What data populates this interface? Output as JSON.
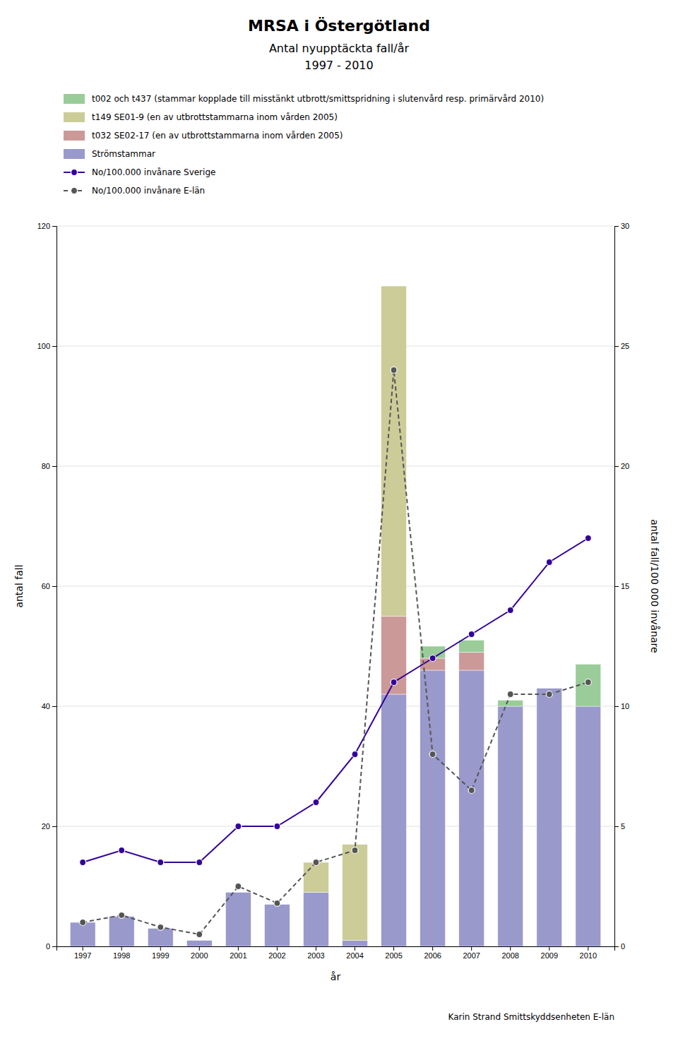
{
  "chart_data": {
    "type": "bar",
    "title": "MRSA i Östergötland",
    "subtitle": "Antal nyupptäckta fall/år",
    "annotations": [
      "1997 - 2010",
      "Karin Strand Smittskyddsenheten E-län"
    ],
    "categories": [
      1997,
      1998,
      1999,
      2000,
      2001,
      2002,
      2003,
      2004,
      2005,
      2006,
      2007,
      2008,
      2009,
      2010
    ],
    "stacked": true,
    "grid": true,
    "legend": "top",
    "xlabel": "år",
    "ylabel": "antal fall",
    "y2label": "antal fall/100 000 invånare",
    "ylim": [
      0,
      120
    ],
    "yticks": [
      0,
      20,
      40,
      60,
      80,
      100,
      120
    ],
    "y2lim": [
      0,
      30
    ],
    "y2ticks": [
      0,
      5,
      10,
      15,
      20,
      25,
      30
    ],
    "series": [
      {
        "name": "Strömstammar",
        "type": "bar",
        "color": "#9999cc",
        "values": [
          4,
          5,
          3,
          1,
          9,
          7,
          9,
          1,
          42,
          46,
          46,
          40,
          43,
          40
        ]
      },
      {
        "name": "t032 SE02-17 (en av utbrottstammarna inom vården 2005)",
        "type": "bar",
        "color": "#cc9999",
        "values": [
          0,
          0,
          0,
          0,
          0,
          0,
          0,
          0,
          13,
          2,
          3,
          0,
          0,
          0
        ]
      },
      {
        "name": "t149 SE01-9 (en av utbrottstammarna inom vården 2005)",
        "type": "bar",
        "color": "#cccc99",
        "values": [
          0,
          0,
          0,
          0,
          0,
          0,
          5,
          16,
          55,
          0,
          0,
          0,
          0,
          0
        ]
      },
      {
        "name": "t002 och t437 (stammar kopplade till misstänkt utbrott/smittspridning i slutenvård resp. primärvård 2010)",
        "type": "bar",
        "color": "#99cc99",
        "values": [
          0,
          0,
          0,
          0,
          0,
          0,
          0,
          0,
          0,
          2,
          2,
          1,
          0,
          7
        ]
      },
      {
        "name": "No/100.000 invånare Sverige",
        "type": "line",
        "axis": "y2",
        "color": "#330099",
        "marker": "circle",
        "line_style": "solid",
        "values": [
          3.5,
          4.0,
          3.5,
          3.5,
          5.0,
          5.0,
          6.0,
          8.0,
          11.0,
          12.0,
          13.0,
          14.0,
          16.0,
          17.0
        ]
      },
      {
        "name": "No/100.000 invånare E-län",
        "type": "line",
        "axis": "y2",
        "color": "#555555",
        "marker": "circle",
        "line_style": "dashed",
        "values": [
          1.0,
          1.3,
          0.8,
          0.5,
          2.5,
          1.8,
          3.5,
          4.0,
          24.0,
          8.0,
          6.5,
          10.5,
          10.5,
          11.0
        ]
      }
    ]
  }
}
